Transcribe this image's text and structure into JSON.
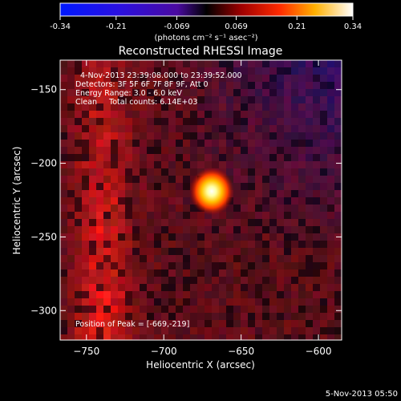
{
  "colorbar": {
    "ticks": [
      "-0.34",
      "-0.21",
      "-0.069",
      "0.069",
      "0.21",
      "0.34"
    ],
    "tick_values": [
      -0.34,
      -0.21,
      -0.069,
      0.069,
      0.21,
      0.34
    ],
    "range": [
      -0.34,
      0.34
    ],
    "units": "(photons cm⁻² s⁻¹ asec⁻²)"
  },
  "chart_data": {
    "type": "heatmap",
    "title": "Reconstructed RHESSI Image",
    "annotations": [
      "4-Nov-2013 23:39:08.000 to 23:39:52.000",
      "Detectors: 3F 5F 6F 7F 8F 9F, Att 0",
      "Energy Range: 3.0 - 6.0 keV",
      "Clean     Total counts: 6.14E+03"
    ],
    "peak_label": "Position of Peak = [-669,-219]",
    "peak": {
      "x": -669,
      "y": -219
    },
    "xlabel": "Heliocentric X (arcsec)",
    "ylabel": "Heliocentric Y (arcsec)",
    "xticks": [
      -750,
      -700,
      -650,
      -600
    ],
    "xtick_labels": [
      "−750",
      "−700",
      "−650",
      "−600"
    ],
    "yticks": [
      -150,
      -200,
      -250,
      -300
    ],
    "ytick_labels": [
      "−150",
      "−200",
      "−250",
      "−300"
    ],
    "xlim": [
      -767,
      -585
    ],
    "ylim": [
      -320,
      -130
    ]
  },
  "footer": {
    "date": "5-Nov-2013 05:50"
  }
}
